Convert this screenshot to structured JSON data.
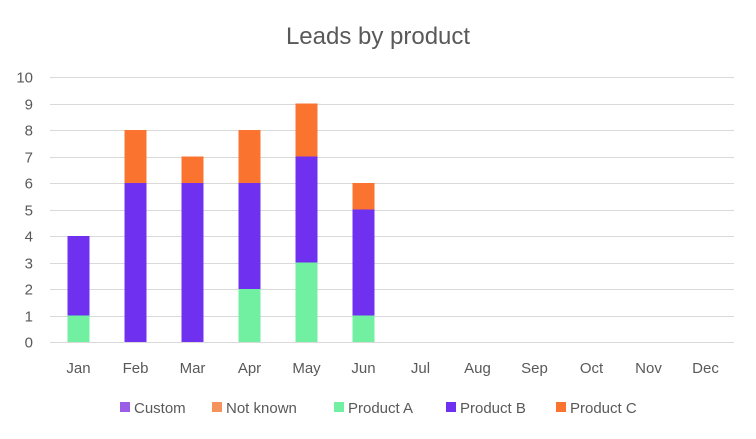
{
  "chart_data": {
    "type": "bar",
    "stacked": true,
    "title": "Leads by product",
    "xlabel": "",
    "ylabel": "",
    "ylim": [
      0,
      10
    ],
    "yticks": [
      0,
      1,
      2,
      3,
      4,
      5,
      6,
      7,
      8,
      9,
      10
    ],
    "grid": true,
    "legend_position": "bottom",
    "categories": [
      "Jan",
      "Feb",
      "Mar",
      "Apr",
      "May",
      "Jun",
      "Jul",
      "Aug",
      "Sep",
      "Oct",
      "Nov",
      "Dec"
    ],
    "series": [
      {
        "name": "Custom",
        "color": "#9b5de5",
        "values": [
          0,
          0,
          0,
          0,
          0,
          0,
          0,
          0,
          0,
          0,
          0,
          0
        ]
      },
      {
        "name": "Not known",
        "color": "#f4945c",
        "values": [
          0,
          0,
          0,
          0,
          0,
          0,
          0,
          0,
          0,
          0,
          0,
          0
        ]
      },
      {
        "name": "Product A",
        "color": "#70f0a0",
        "values": [
          1,
          0,
          0,
          2,
          3,
          1,
          0,
          0,
          0,
          0,
          0,
          0
        ]
      },
      {
        "name": "Product B",
        "color": "#7030f0",
        "values": [
          3,
          6,
          6,
          4,
          4,
          4,
          0,
          0,
          0,
          0,
          0,
          0
        ]
      },
      {
        "name": "Product C",
        "color": "#fa7430",
        "values": [
          0,
          2,
          1,
          2,
          2,
          1,
          0,
          0,
          0,
          0,
          0,
          0
        ]
      }
    ]
  }
}
